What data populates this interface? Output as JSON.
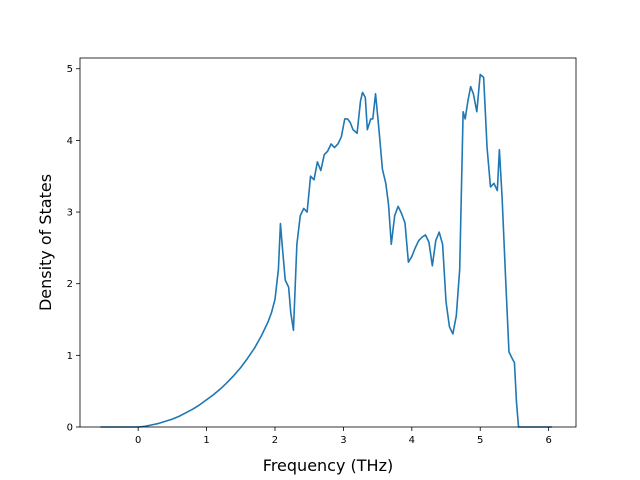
{
  "chart_data": {
    "type": "line",
    "title": "",
    "xlabel": "Frequency (THz)",
    "ylabel": "Density of States",
    "xlim": [
      -0.85,
      6.4
    ],
    "ylim": [
      0,
      5.15
    ],
    "xticks": [
      0,
      1,
      2,
      3,
      4,
      5,
      6
    ],
    "yticks": [
      0,
      1,
      2,
      3,
      4,
      5
    ],
    "grid": false,
    "legend": "none",
    "series": [
      {
        "color": "#1f77b4",
        "x": [
          -0.55,
          -0.3,
          0.0,
          0.1,
          0.2,
          0.3,
          0.4,
          0.5,
          0.6,
          0.7,
          0.8,
          0.9,
          1.0,
          1.1,
          1.2,
          1.3,
          1.4,
          1.5,
          1.6,
          1.7,
          1.8,
          1.9,
          1.95,
          2.0,
          2.05,
          2.08,
          2.1,
          2.15,
          2.2,
          2.23,
          2.27,
          2.32,
          2.37,
          2.42,
          2.47,
          2.52,
          2.57,
          2.62,
          2.67,
          2.72,
          2.77,
          2.82,
          2.87,
          2.92,
          2.97,
          3.02,
          3.06,
          3.1,
          3.14,
          3.2,
          3.25,
          3.28,
          3.32,
          3.35,
          3.4,
          3.43,
          3.47,
          3.52,
          3.57,
          3.62,
          3.66,
          3.7,
          3.75,
          3.8,
          3.85,
          3.9,
          3.95,
          4.0,
          4.05,
          4.1,
          4.15,
          4.2,
          4.25,
          4.3,
          4.35,
          4.4,
          4.45,
          4.5,
          4.55,
          4.6,
          4.65,
          4.7,
          4.75,
          4.78,
          4.82,
          4.86,
          4.9,
          4.95,
          5.0,
          5.05,
          5.1,
          5.15,
          5.2,
          5.25,
          5.28,
          5.32,
          5.37,
          5.42,
          5.47,
          5.5,
          5.53,
          5.56,
          5.7,
          6.05
        ],
        "y": [
          0.0,
          0.0,
          0.0,
          0.01,
          0.03,
          0.05,
          0.08,
          0.11,
          0.15,
          0.2,
          0.25,
          0.31,
          0.38,
          0.45,
          0.53,
          0.62,
          0.72,
          0.83,
          0.96,
          1.1,
          1.27,
          1.47,
          1.6,
          1.78,
          2.2,
          2.84,
          2.6,
          2.05,
          1.95,
          1.6,
          1.35,
          2.55,
          2.95,
          3.05,
          3.0,
          3.5,
          3.45,
          3.7,
          3.58,
          3.8,
          3.85,
          3.95,
          3.9,
          3.95,
          4.05,
          4.3,
          4.3,
          4.25,
          4.15,
          4.1,
          4.55,
          4.67,
          4.6,
          4.15,
          4.3,
          4.3,
          4.65,
          4.15,
          3.6,
          3.4,
          3.1,
          2.55,
          2.95,
          3.08,
          2.98,
          2.85,
          2.3,
          2.38,
          2.5,
          2.6,
          2.65,
          2.68,
          2.58,
          2.25,
          2.6,
          2.72,
          2.55,
          1.75,
          1.4,
          1.3,
          1.55,
          2.2,
          4.4,
          4.3,
          4.55,
          4.75,
          4.65,
          4.4,
          4.92,
          4.88,
          3.9,
          3.35,
          3.4,
          3.3,
          3.87,
          3.2,
          2.1,
          1.05,
          0.95,
          0.9,
          0.35,
          0.0,
          0.0,
          0.0
        ]
      }
    ]
  }
}
